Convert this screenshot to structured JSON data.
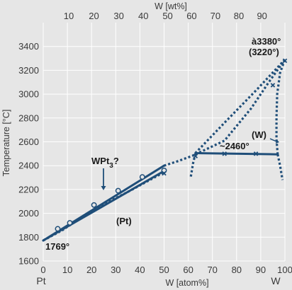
{
  "chart_data": {
    "type": "line",
    "ylabel": "Temperature [°C]",
    "xlabel_bottom": "W [atom%]",
    "xlabel_top": "W [wt%]",
    "xlim": [
      0,
      100
    ],
    "ylim": [
      1600,
      3600
    ],
    "grid": true,
    "x_ticks_bottom": [
      "0",
      "10",
      "20",
      "30",
      "40",
      "50",
      "60",
      "70",
      "80",
      "90",
      "100"
    ],
    "x_ticks_top": [
      "10",
      "20",
      "30",
      "40",
      "50",
      "60",
      "70",
      "80",
      "90"
    ],
    "y_ticks": [
      "1600",
      "1800",
      "2000",
      "2200",
      "2400",
      "2600",
      "2800",
      "3000",
      "3200",
      "3400"
    ],
    "end_labels": {
      "left": "Pt",
      "right": "W"
    },
    "annotations": {
      "pt_melt": "1769°",
      "phase_pt": "(Pt)",
      "phase_w": "(W)",
      "wpt3": "WPt",
      "wpt3_sub": "3",
      "wpt3_q": "?",
      "peritectic": "~2460°",
      "w_melt_a": "à3380°",
      "w_melt_b": "(3220°)"
    },
    "series": [
      {
        "style": "solid",
        "points": [
          [
            0,
            1772
          ],
          [
            50,
            2400
          ]
        ]
      },
      {
        "style": "solid",
        "points": [
          [
            0,
            1772
          ],
          [
            50,
            2355
          ]
        ]
      },
      {
        "style": "solid",
        "points": [
          [
            63,
            2505
          ],
          [
            97,
            2495
          ]
        ]
      },
      {
        "style": "dotted",
        "points": [
          [
            0,
            1772
          ],
          [
            8,
            1860
          ],
          [
            20,
            2020
          ],
          [
            35,
            2180
          ],
          [
            45,
            2290
          ],
          [
            50,
            2345
          ]
        ]
      },
      {
        "style": "dotted",
        "points": [
          [
            50,
            2400
          ],
          [
            56,
            2440
          ],
          [
            62,
            2485
          ],
          [
            75,
            2760
          ],
          [
            88,
            3030
          ],
          [
            100,
            3290
          ]
        ]
      },
      {
        "style": "dotted",
        "points": [
          [
            63,
            2495
          ],
          [
            75,
            2610
          ],
          [
            86,
            2880
          ],
          [
            93,
            3090
          ],
          [
            100,
            3290
          ]
        ]
      },
      {
        "style": "dotted",
        "points": [
          [
            63,
            2500
          ],
          [
            62,
            2420
          ],
          [
            61,
            2300
          ]
        ]
      },
      {
        "style": "dotted",
        "points": [
          [
            97,
            2495
          ],
          [
            96.5,
            2620
          ],
          [
            96.5,
            2800
          ],
          [
            96.8,
            3000
          ],
          [
            98,
            3180
          ],
          [
            100,
            3290
          ]
        ]
      },
      {
        "style": "dotted",
        "points": [
          [
            97,
            2495
          ],
          [
            98,
            2400
          ],
          [
            99,
            2280
          ]
        ]
      }
    ],
    "markers_circle": [
      [
        6,
        1870
      ],
      [
        11,
        1920
      ],
      [
        21,
        2070
      ],
      [
        31,
        2190
      ],
      [
        41,
        2305
      ],
      [
        50,
        2360
      ]
    ],
    "markers_cross": [
      [
        50,
        2335
      ],
      [
        63,
        2480
      ],
      [
        75,
        2500
      ],
      [
        88,
        2500
      ],
      [
        95,
        3075
      ],
      [
        100,
        3280
      ]
    ]
  }
}
